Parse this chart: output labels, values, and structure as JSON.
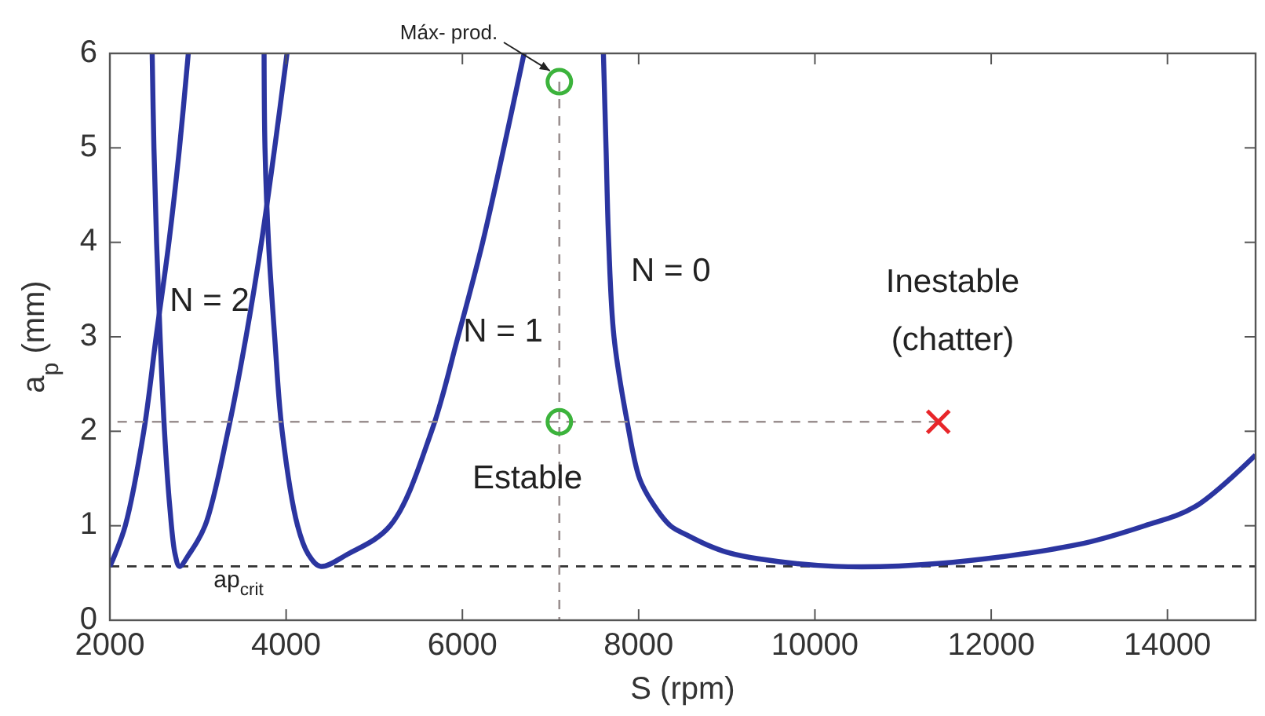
{
  "chart_data": {
    "type": "line",
    "xlabel": "S (rpm)",
    "ylabel": "a$_{p}$ (mm)",
    "xlim": [
      2000,
      15000
    ],
    "ylim": [
      0,
      6
    ],
    "xticks": [
      2000,
      4000,
      6000,
      8000,
      10000,
      12000,
      14000
    ],
    "yticks": [
      0,
      1,
      2,
      3,
      4,
      5,
      6
    ],
    "grid": false,
    "series": [
      {
        "color": "#2b35a0",
        "line_style": "solid",
        "marker": "none",
        "x": [
          2000,
          2060,
          2175,
          2385,
          2525,
          2670,
          2790,
          2890
        ],
        "values": [
          0.57,
          0.7,
          1,
          2,
          3,
          4,
          5,
          6
        ]
      },
      {
        "color": "#2b35a0",
        "line_style": "solid",
        "marker": "none",
        "x": [
          2480,
          2500,
          2530,
          2570,
          2620,
          2680,
          2740,
          2790,
          2900,
          3080,
          3340,
          3545,
          3720,
          3870,
          4010
        ],
        "values": [
          6,
          5,
          4,
          3,
          2,
          1.2,
          0.7,
          0.57,
          0.7,
          1,
          2,
          3,
          4,
          5,
          6
        ]
      },
      {
        "color": "#2b35a0",
        "line_style": "solid",
        "marker": "none",
        "x": [
          3750,
          3760,
          3800,
          3870,
          3955,
          4130,
          4250,
          4390,
          4700,
          5180,
          5650,
          5950,
          6230,
          6470,
          6700
        ],
        "values": [
          6,
          5,
          4,
          3,
          2,
          1,
          0.7,
          0.57,
          0.7,
          1,
          2,
          3,
          4,
          5,
          6
        ]
      },
      {
        "color": "#2b35a0",
        "line_style": "solid",
        "marker": "none",
        "x": [
          7600,
          7630,
          7660,
          7720,
          7870,
          8010,
          8150,
          8360,
          8550,
          8770,
          9000,
          9360,
          10230,
          11400,
          12980,
          13740,
          14310,
          15000
        ],
        "values": [
          6,
          5,
          4,
          3,
          2.1,
          1.5,
          1.25,
          1,
          0.9,
          0.8,
          0.72,
          0.65,
          0.57,
          0.6,
          0.8,
          1,
          1.2,
          1.75
        ]
      },
      {
        "color": "#9a8f8f",
        "line_style": "dashed",
        "marker": "none",
        "x": [
          2000,
          11400
        ],
        "values": [
          2.1,
          2.1
        ]
      },
      {
        "color": "#9a8f8f",
        "line_style": "dashed",
        "marker": "none",
        "x": [
          7100,
          7100
        ],
        "values": [
          0,
          5.7
        ]
      },
      {
        "type": "scatter",
        "color": "#3cb33c",
        "marker": "circle",
        "x": [
          7100,
          7100
        ],
        "values": [
          5.7,
          2.1
        ]
      },
      {
        "type": "scatter",
        "color": "#e8262a",
        "marker": "cross",
        "x": [
          11400
        ],
        "values": [
          2.1
        ]
      }
    ],
    "ref_lines": [
      {
        "axis": "y",
        "value": 0.57,
        "color": "#333333",
        "line_style": "dashed"
      }
    ],
    "annotations": [
      "Máx- prod.",
      {
        "text": "N = 2",
        "x": 2680,
        "y": 3.37
      },
      {
        "text": "N = 1",
        "x": 6010,
        "y": 3.05
      },
      "N = 0",
      "Estable",
      "Inestable\n(chatter)",
      "ap$_{crit}$"
    ]
  }
}
